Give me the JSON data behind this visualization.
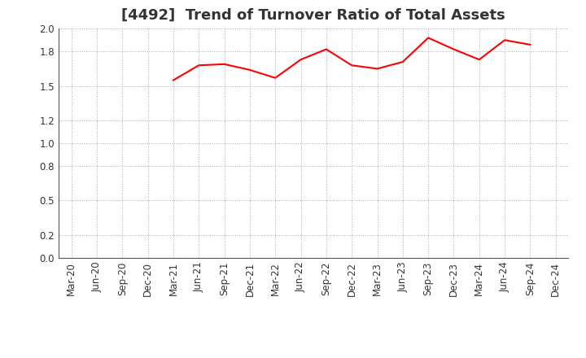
{
  "title": "[4492]  Trend of Turnover Ratio of Total Assets",
  "x_labels": [
    "Mar-20",
    "Jun-20",
    "Sep-20",
    "Dec-20",
    "Mar-21",
    "Jun-21",
    "Sep-21",
    "Dec-21",
    "Mar-22",
    "Jun-22",
    "Sep-22",
    "Dec-22",
    "Mar-23",
    "Jun-23",
    "Sep-23",
    "Dec-23",
    "Mar-24",
    "Jun-24",
    "Sep-24",
    "Dec-24"
  ],
  "y_values": [
    null,
    null,
    null,
    null,
    1.55,
    1.68,
    1.69,
    1.64,
    1.57,
    1.73,
    1.82,
    1.68,
    1.65,
    1.71,
    1.92,
    1.82,
    1.73,
    1.9,
    1.86,
    null
  ],
  "line_color": "#ff0000",
  "line_width": 1.5,
  "ylim": [
    0.0,
    2.0
  ],
  "yticks": [
    0.0,
    0.2,
    0.5,
    0.8,
    1.0,
    1.2,
    1.5,
    1.8,
    2.0
  ],
  "background_color": "#ffffff",
  "grid_color": "#aaaaaa",
  "title_fontsize": 13,
  "title_color": "#333333",
  "tick_fontsize": 8.5
}
